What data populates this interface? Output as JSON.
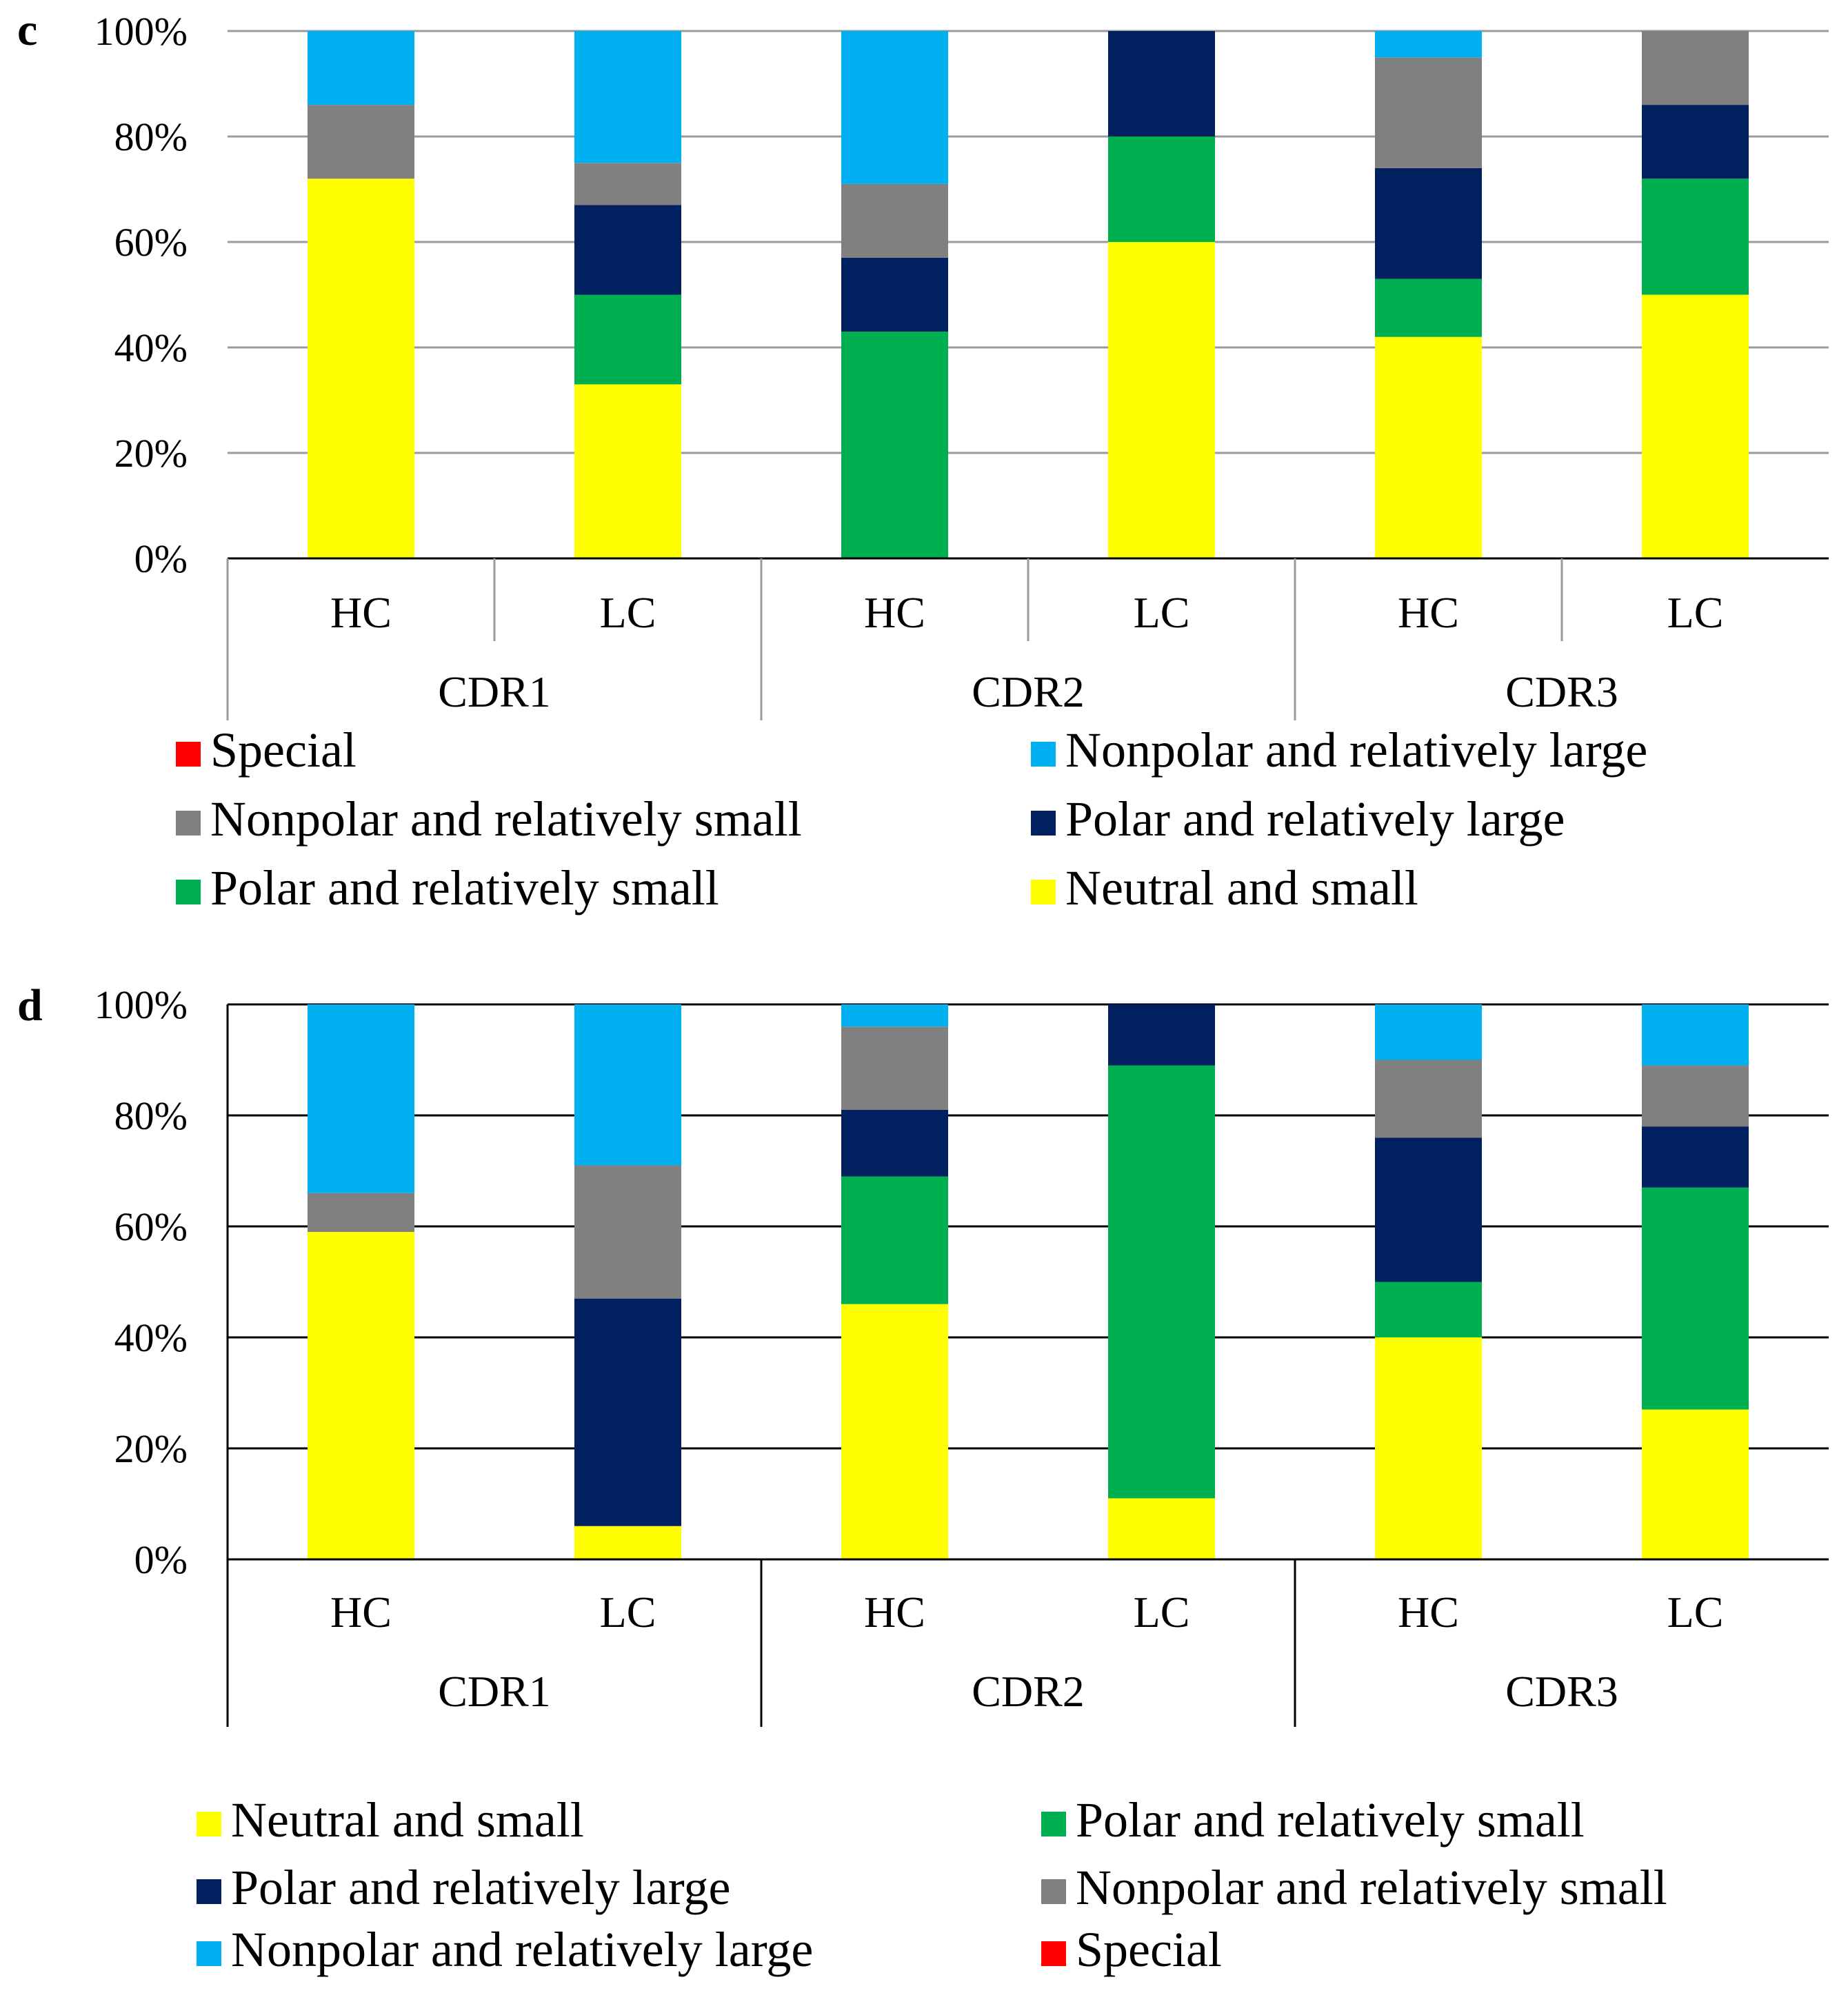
{
  "colors": {
    "Special": "#ff0000",
    "Nonpolar and relatively large": "#00b0f0",
    "Nonpolar and relatively small": "#808080",
    "Polar and relatively large": "#002060",
    "Polar and relatively small": "#00b050",
    "Neutral and small": "#ffff00"
  },
  "chart_data": [
    {
      "type": "bar",
      "stacked": true,
      "normalized": true,
      "panel_label": "c",
      "ylim": [
        0,
        100
      ],
      "y_ticks": [
        "0%",
        "20%",
        "40%",
        "60%",
        "80%",
        "100%"
      ],
      "grid": true,
      "categories": [
        "HC",
        "LC",
        "HC",
        "LC",
        "HC",
        "LC"
      ],
      "groups": [
        "CDR1",
        "CDR2",
        "CDR3"
      ],
      "series": [
        {
          "name": "Neutral and small",
          "values": [
            72,
            33,
            0,
            60,
            42,
            50
          ]
        },
        {
          "name": "Polar and relatively small",
          "values": [
            0,
            17,
            43,
            20,
            11,
            22
          ]
        },
        {
          "name": "Polar and relatively large",
          "values": [
            0,
            17,
            14,
            20,
            21,
            14
          ]
        },
        {
          "name": "Nonpolar and relatively small",
          "values": [
            14,
            8,
            14,
            0,
            21,
            14
          ]
        },
        {
          "name": "Nonpolar and relatively large",
          "values": [
            14,
            25,
            29,
            0,
            5,
            0
          ]
        },
        {
          "name": "Special",
          "values": [
            0,
            0,
            0,
            0,
            0,
            0
          ]
        }
      ],
      "legend": [
        "Special",
        "Nonpolar and relatively large",
        "Nonpolar and relatively small",
        "Polar and relatively large",
        "Polar and relatively small",
        "Neutral and small"
      ],
      "legend_position": "bottom"
    },
    {
      "type": "bar",
      "stacked": true,
      "normalized": true,
      "panel_label": "d",
      "ylim": [
        0,
        100
      ],
      "y_ticks": [
        "0%",
        "20%",
        "40%",
        "60%",
        "80%",
        "100%"
      ],
      "grid": true,
      "categories": [
        "HC",
        "LC",
        "HC",
        "LC",
        "HC",
        "LC"
      ],
      "groups": [
        "CDR1",
        "CDR2",
        "CDR3"
      ],
      "series": [
        {
          "name": "Neutral and small",
          "values": [
            59,
            6,
            46,
            11,
            40,
            27
          ]
        },
        {
          "name": "Polar and relatively small",
          "values": [
            0,
            0,
            23,
            78,
            10,
            40
          ]
        },
        {
          "name": "Polar and relatively large",
          "values": [
            0,
            41,
            12,
            11,
            26,
            11
          ]
        },
        {
          "name": "Nonpolar and relatively small",
          "values": [
            7,
            24,
            15,
            0,
            14,
            11
          ]
        },
        {
          "name": "Nonpolar and relatively large",
          "values": [
            34,
            29,
            4,
            0,
            10,
            11
          ]
        },
        {
          "name": "Special",
          "values": [
            0,
            0,
            0,
            0,
            0,
            0
          ]
        }
      ],
      "legend": [
        "Neutral and small",
        "Polar and relatively small",
        "Polar and relatively large",
        "Nonpolar and relatively small",
        "Nonpolar and relatively large",
        "Special"
      ],
      "legend_position": "bottom"
    }
  ]
}
